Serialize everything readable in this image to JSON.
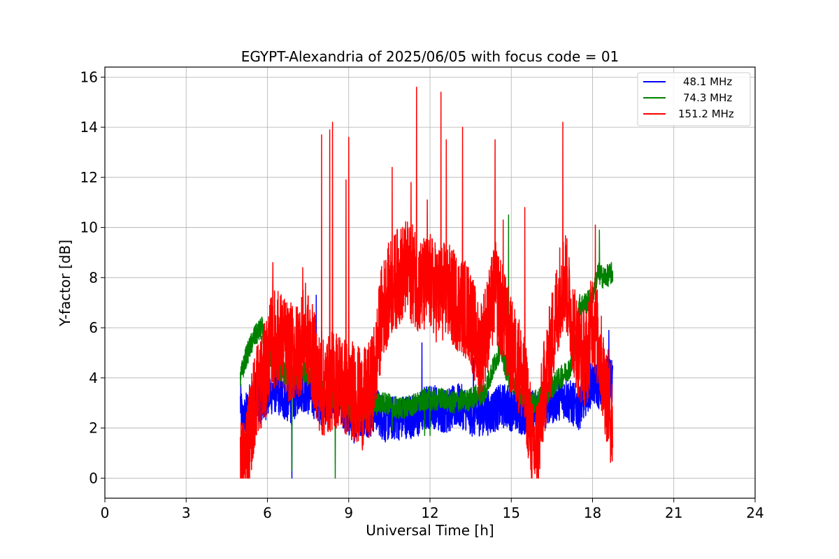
{
  "chart_data": {
    "type": "line",
    "title": "EGYPT-Alexandria of 2025/06/05 with focus code = 01",
    "xlabel": "Universal Time [h]",
    "ylabel": "Y-factor [dB]",
    "xlim": [
      0,
      24
    ],
    "ylim": [
      -0.8,
      16.4
    ],
    "xticks": [
      0,
      3,
      6,
      9,
      12,
      15,
      18,
      21,
      24
    ],
    "yticks": [
      0,
      2,
      4,
      6,
      8,
      10,
      12,
      14,
      16
    ],
    "grid": true,
    "legend_position": "top-right",
    "series": [
      {
        "name": "48.1 MHz",
        "color": "#0000ff",
        "noise": 0.9,
        "points": [
          [
            5.0,
            3.0
          ],
          [
            5.1,
            2.2
          ],
          [
            5.3,
            2.8
          ],
          [
            5.5,
            3.4
          ],
          [
            5.8,
            3.0
          ],
          [
            6.0,
            3.3
          ],
          [
            6.3,
            3.5
          ],
          [
            6.6,
            3.2
          ],
          [
            6.9,
            3.0
          ],
          [
            7.2,
            3.6
          ],
          [
            7.5,
            3.4
          ],
          [
            7.8,
            3.2
          ],
          [
            8.0,
            3.0
          ],
          [
            8.3,
            3.0
          ],
          [
            8.6,
            3.1
          ],
          [
            8.9,
            2.6
          ],
          [
            9.2,
            2.3
          ],
          [
            9.5,
            2.6
          ],
          [
            9.8,
            2.5
          ],
          [
            10.0,
            2.8
          ],
          [
            10.3,
            2.3
          ],
          [
            10.6,
            2.4
          ],
          [
            10.9,
            2.4
          ],
          [
            11.2,
            2.5
          ],
          [
            11.5,
            2.4
          ],
          [
            11.8,
            2.8
          ],
          [
            12.1,
            2.9
          ],
          [
            12.4,
            2.7
          ],
          [
            12.7,
            2.7
          ],
          [
            13.0,
            2.9
          ],
          [
            13.3,
            2.8
          ],
          [
            13.6,
            2.5
          ],
          [
            13.9,
            2.6
          ],
          [
            14.2,
            2.6
          ],
          [
            14.5,
            2.8
          ],
          [
            14.8,
            2.9
          ],
          [
            15.1,
            2.7
          ],
          [
            15.4,
            2.6
          ],
          [
            15.7,
            2.6
          ],
          [
            16.0,
            2.7
          ],
          [
            16.3,
            2.9
          ],
          [
            16.6,
            3.1
          ],
          [
            16.9,
            3.3
          ],
          [
            17.2,
            3.0
          ],
          [
            17.5,
            2.8
          ],
          [
            17.8,
            3.5
          ],
          [
            18.0,
            3.8
          ],
          [
            18.3,
            3.6
          ],
          [
            18.5,
            4.0
          ],
          [
            18.75,
            3.8
          ]
        ],
        "spikes": [
          [
            6.9,
            0.0
          ],
          [
            7.8,
            7.3
          ],
          [
            8.0,
            5.9
          ],
          [
            11.7,
            5.4
          ],
          [
            13.6,
            4.8
          ],
          [
            18.6,
            5.9
          ]
        ]
      },
      {
        "name": "74.3 MHz",
        "color": "#008000",
        "noise": 0.45,
        "points": [
          [
            5.0,
            4.0
          ],
          [
            5.2,
            4.8
          ],
          [
            5.5,
            5.6
          ],
          [
            5.8,
            6.0
          ],
          [
            6.0,
            5.0
          ],
          [
            6.3,
            4.4
          ],
          [
            6.6,
            4.2
          ],
          [
            6.9,
            4.0
          ],
          [
            7.2,
            4.3
          ],
          [
            7.5,
            4.2
          ],
          [
            7.8,
            3.9
          ],
          [
            8.0,
            3.5
          ],
          [
            8.3,
            3.3
          ],
          [
            8.6,
            3.1
          ],
          [
            8.9,
            2.9
          ],
          [
            9.2,
            2.6
          ],
          [
            9.5,
            2.7
          ],
          [
            9.8,
            2.8
          ],
          [
            10.1,
            3.0
          ],
          [
            10.4,
            3.0
          ],
          [
            10.7,
            2.8
          ],
          [
            11.0,
            2.8
          ],
          [
            11.3,
            2.9
          ],
          [
            11.6,
            3.0
          ],
          [
            11.9,
            3.2
          ],
          [
            12.2,
            3.1
          ],
          [
            12.5,
            3.2
          ],
          [
            12.8,
            3.0
          ],
          [
            13.1,
            3.1
          ],
          [
            13.4,
            3.1
          ],
          [
            13.7,
            3.3
          ],
          [
            14.0,
            3.4
          ],
          [
            14.3,
            4.3
          ],
          [
            14.6,
            5.2
          ],
          [
            14.9,
            4.0
          ],
          [
            15.2,
            3.6
          ],
          [
            15.5,
            3.2
          ],
          [
            15.8,
            3.0
          ],
          [
            16.1,
            3.2
          ],
          [
            16.4,
            3.5
          ],
          [
            16.7,
            3.9
          ],
          [
            17.0,
            4.2
          ],
          [
            17.3,
            4.6
          ],
          [
            17.5,
            6.9
          ],
          [
            17.8,
            7.0
          ],
          [
            18.0,
            7.3
          ],
          [
            18.2,
            8.2
          ],
          [
            18.4,
            8.0
          ],
          [
            18.6,
            8.1
          ],
          [
            18.75,
            8.2
          ]
        ],
        "spikes": [
          [
            6.9,
            0.3
          ],
          [
            8.5,
            0.0
          ],
          [
            10.6,
            1.9
          ],
          [
            11.8,
            1.7
          ],
          [
            12.0,
            1.7
          ],
          [
            14.9,
            10.5
          ],
          [
            18.25,
            9.9
          ],
          [
            18.75,
            9.0
          ]
        ]
      },
      {
        "name": "151.2 MHz",
        "color": "#ff0000",
        "noise": 2.0,
        "points": [
          [
            5.0,
            0.5
          ],
          [
            5.1,
            0.4
          ],
          [
            5.3,
            1.6
          ],
          [
            5.6,
            3.5
          ],
          [
            5.9,
            4.2
          ],
          [
            6.2,
            5.6
          ],
          [
            6.5,
            5.5
          ],
          [
            6.8,
            5.0
          ],
          [
            7.1,
            5.0
          ],
          [
            7.4,
            5.8
          ],
          [
            7.7,
            4.8
          ],
          [
            8.0,
            3.5
          ],
          [
            8.3,
            3.8
          ],
          [
            8.6,
            4.0
          ],
          [
            8.9,
            3.6
          ],
          [
            9.2,
            3.5
          ],
          [
            9.5,
            3.1
          ],
          [
            9.8,
            3.5
          ],
          [
            10.0,
            4.5
          ],
          [
            10.2,
            6.5
          ],
          [
            10.5,
            7.5
          ],
          [
            10.8,
            8.0
          ],
          [
            11.1,
            8.3
          ],
          [
            11.4,
            8.1
          ],
          [
            11.7,
            7.6
          ],
          [
            12.0,
            7.8
          ],
          [
            12.3,
            7.3
          ],
          [
            12.6,
            7.5
          ],
          [
            12.9,
            7.1
          ],
          [
            13.2,
            6.9
          ],
          [
            13.5,
            6.5
          ],
          [
            13.8,
            5.0
          ],
          [
            14.1,
            6.0
          ],
          [
            14.4,
            7.5
          ],
          [
            14.7,
            6.5
          ],
          [
            15.0,
            5.2
          ],
          [
            15.3,
            4.5
          ],
          [
            15.6,
            3.0
          ],
          [
            15.8,
            1.0
          ],
          [
            16.0,
            1.5
          ],
          [
            16.2,
            3.5
          ],
          [
            16.5,
            5.5
          ],
          [
            16.8,
            7.5
          ],
          [
            17.0,
            8.0
          ],
          [
            17.2,
            6.5
          ],
          [
            17.5,
            5.0
          ],
          [
            17.8,
            4.8
          ],
          [
            18.0,
            6.5
          ],
          [
            18.2,
            5.5
          ],
          [
            18.4,
            4.0
          ],
          [
            18.6,
            3.0
          ],
          [
            18.75,
            2.0
          ]
        ],
        "spikes": [
          [
            6.2,
            8.6
          ],
          [
            7.3,
            8.4
          ],
          [
            8.0,
            13.7
          ],
          [
            8.3,
            13.9
          ],
          [
            8.4,
            14.2
          ],
          [
            8.9,
            11.9
          ],
          [
            9.0,
            13.6
          ],
          [
            10.6,
            12.4
          ],
          [
            11.3,
            11.8
          ],
          [
            11.5,
            15.6
          ],
          [
            11.9,
            11.1
          ],
          [
            12.4,
            15.4
          ],
          [
            12.6,
            13.5
          ],
          [
            13.2,
            14.0
          ],
          [
            14.4,
            13.5
          ],
          [
            14.7,
            10.3
          ],
          [
            15.5,
            10.8
          ],
          [
            16.9,
            14.2
          ],
          [
            18.1,
            10.1
          ]
        ]
      }
    ]
  }
}
